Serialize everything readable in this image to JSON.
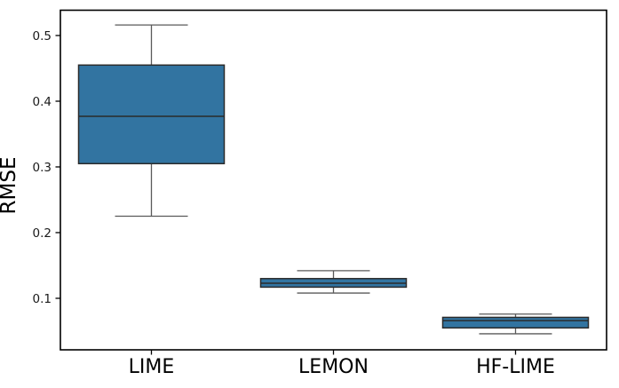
{
  "chart_data": {
    "type": "box",
    "title": "",
    "xlabel": "",
    "ylabel": "RMSE",
    "categories": [
      "LIME",
      "LEMON",
      "HF-LIME"
    ],
    "yticks": [
      0.1,
      0.2,
      0.3,
      0.4,
      0.5
    ],
    "ytick_labels": [
      "0.1",
      "0.2",
      "0.3",
      "0.4",
      "0.5"
    ],
    "ylim": [
      0.0216,
      0.5385
    ],
    "grid": false,
    "legend": false,
    "boxes": [
      {
        "label": "LIME",
        "whislo": 0.225,
        "q1": 0.305,
        "med": 0.377,
        "q3": 0.455,
        "whishi": 0.516,
        "fliers": []
      },
      {
        "label": "LEMON",
        "whislo": 0.108,
        "q1": 0.117,
        "med": 0.123,
        "q3": 0.13,
        "whishi": 0.142,
        "fliers": []
      },
      {
        "label": "HF-LIME",
        "whislo": 0.046,
        "q1": 0.055,
        "med": 0.066,
        "q3": 0.071,
        "whishi": 0.076,
        "fliers": []
      }
    ],
    "colors": {
      "box_fill": "#3274a1",
      "box_edge": "#2b2b2b",
      "median": "#2b2b2b",
      "whisker": "#5a5a5a",
      "spine": "#000000",
      "background": "#ffffff"
    }
  }
}
